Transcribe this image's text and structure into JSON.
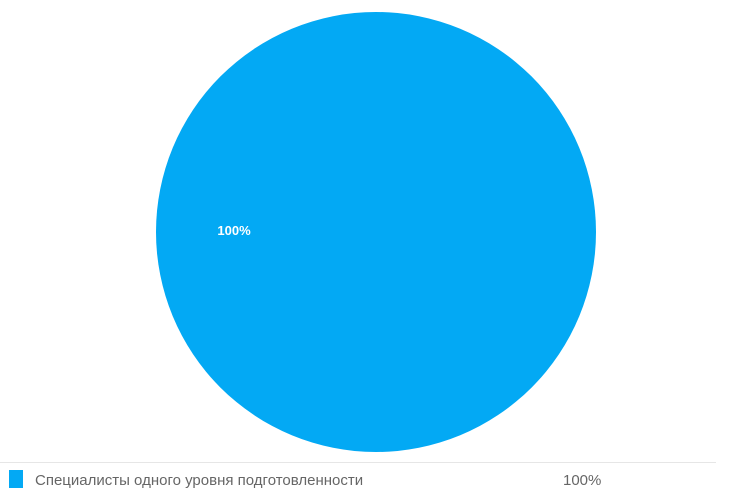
{
  "chart_data": {
    "type": "pie",
    "categories": [
      "Специалисты одного уровня подготовленности"
    ],
    "values": [
      100
    ],
    "value_labels": [
      "100%"
    ],
    "colors": [
      "#03a9f4"
    ],
    "legend_position": "bottom"
  },
  "legend": {
    "items": [
      {
        "label": "Специалисты одного уровня подготовленности",
        "value": "100%",
        "color": "#03a9f4"
      }
    ]
  }
}
